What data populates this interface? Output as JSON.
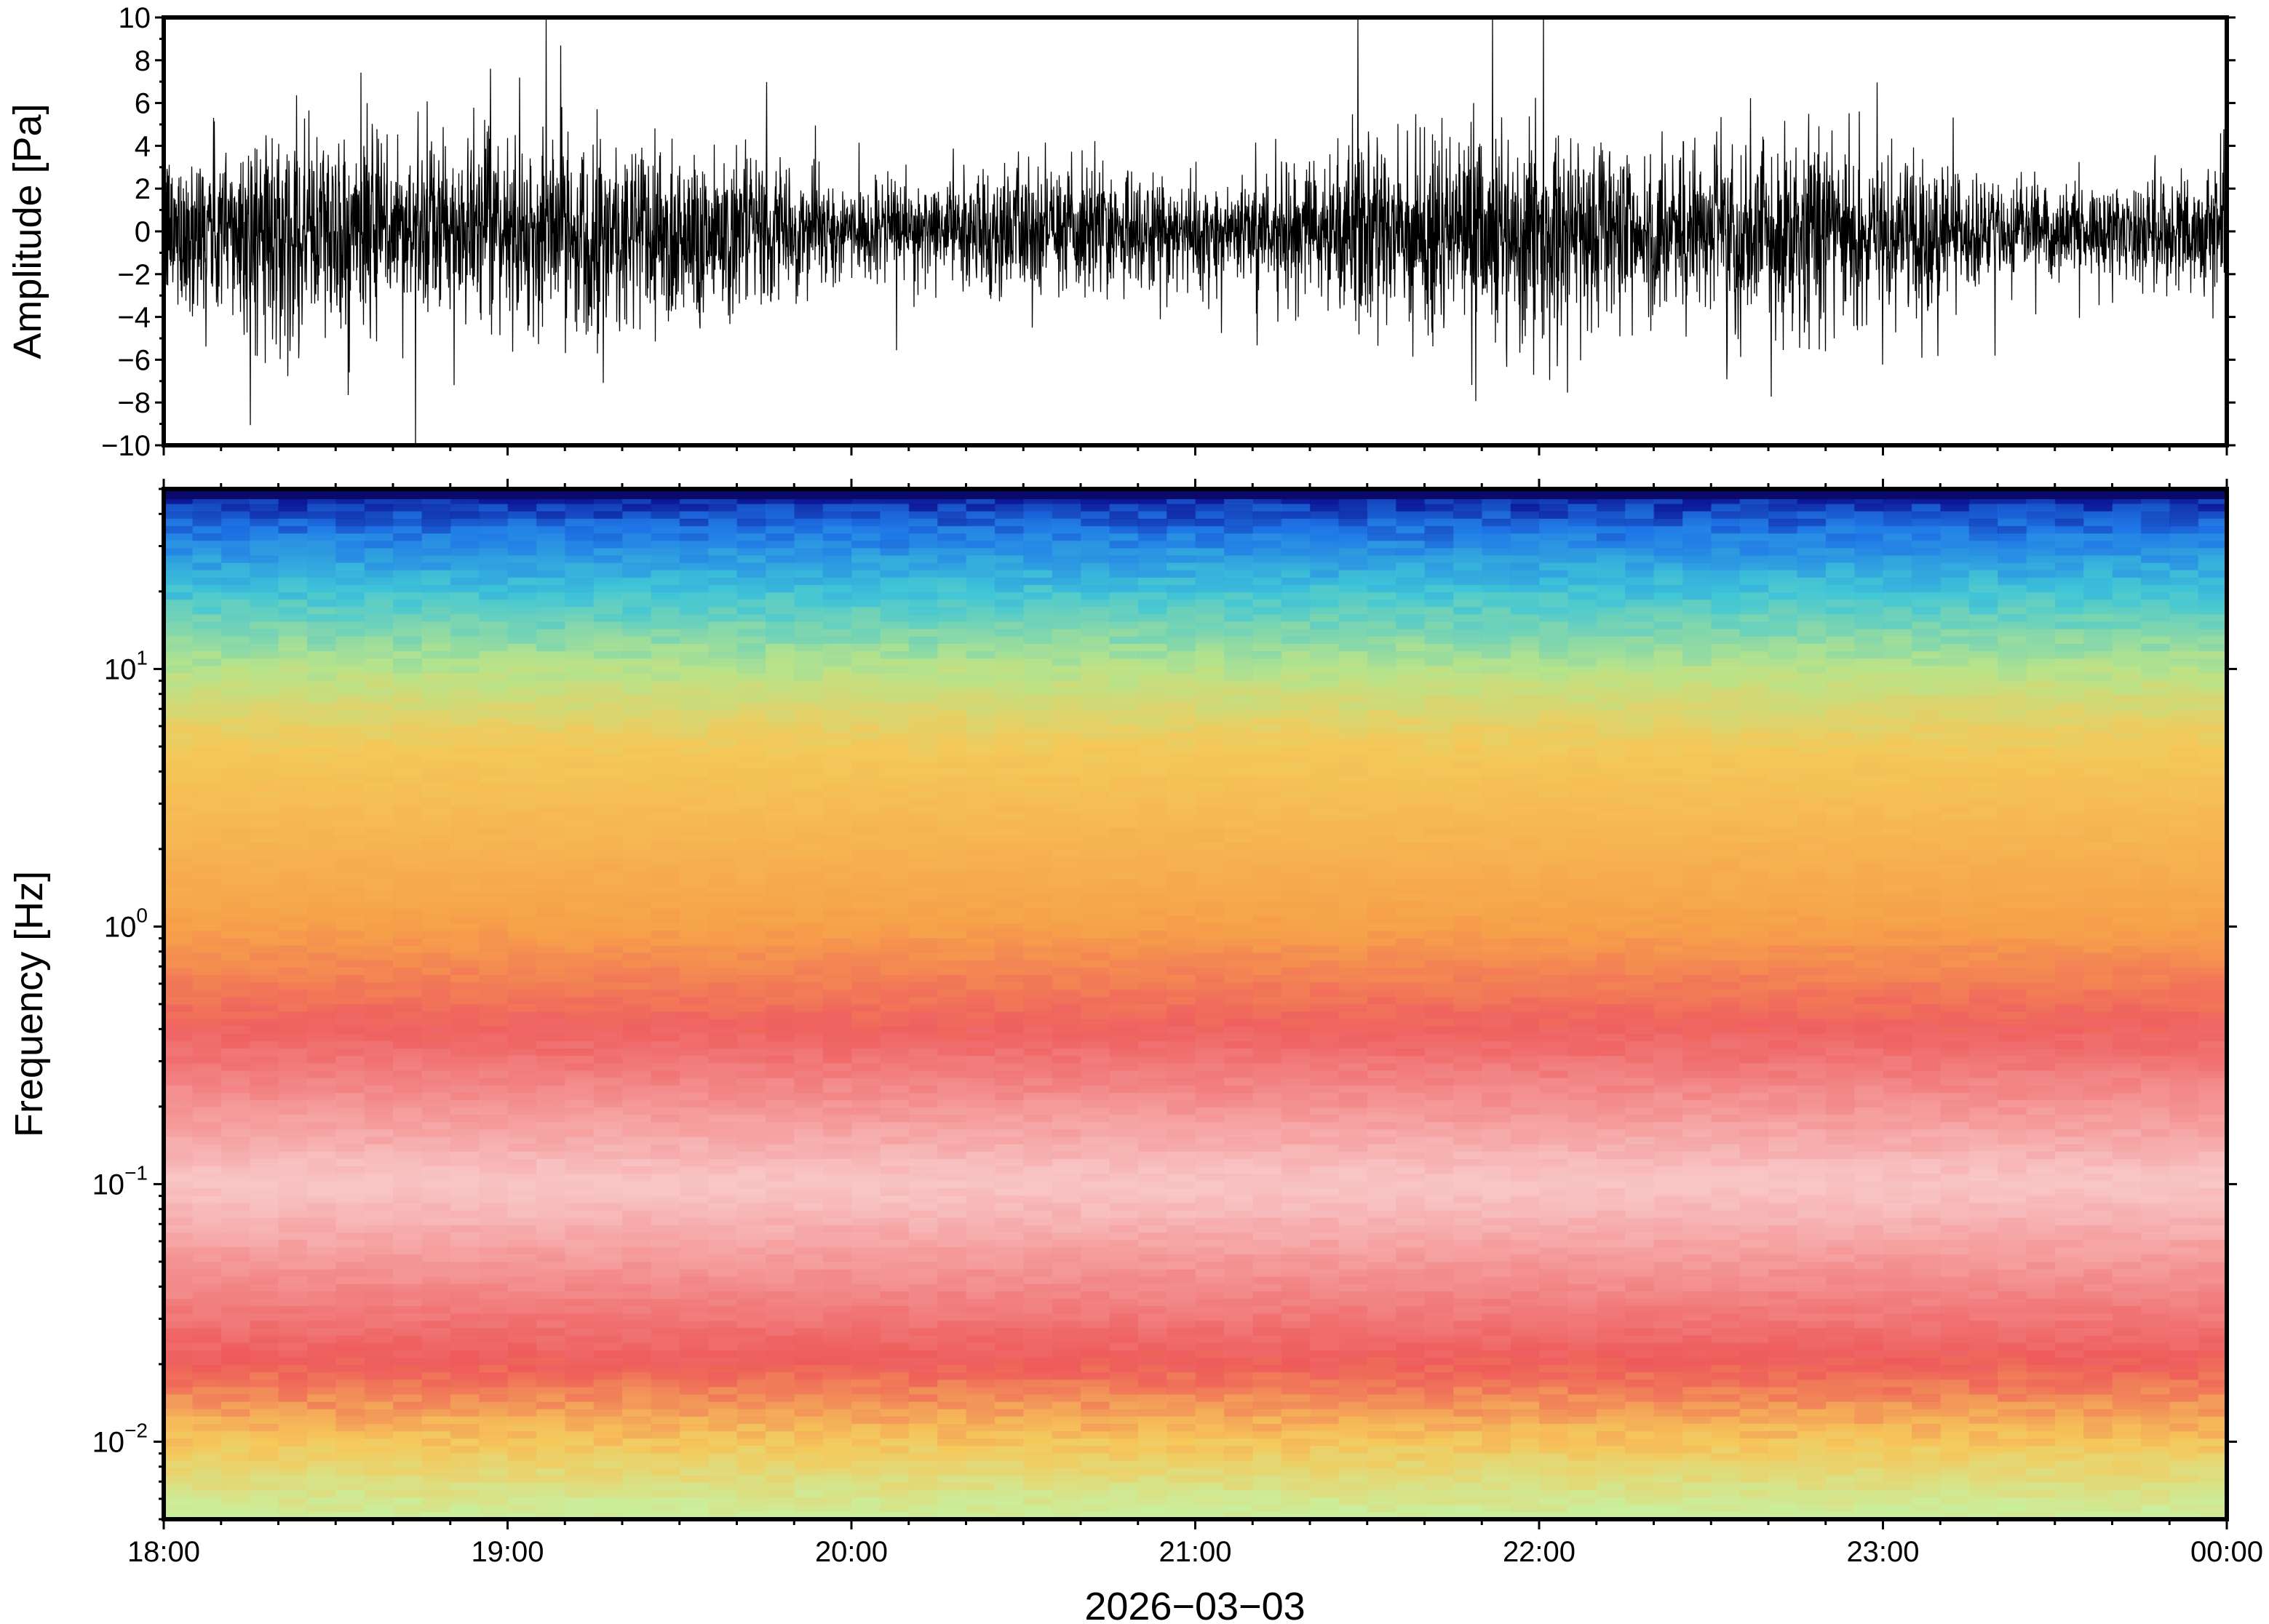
{
  "chart_data": [
    {
      "type": "line",
      "panel": "waveform",
      "ylabel": "Amplitude [Pa]",
      "ylim": [
        -10,
        10
      ],
      "yticks": [
        10,
        8,
        6,
        4,
        2,
        0,
        -2,
        -4,
        -6,
        -8,
        -10
      ],
      "ytick_labels": [
        "10",
        "8",
        "6",
        "4",
        "2",
        "0",
        "−2",
        "−4",
        "−6",
        "−8",
        "−10"
      ],
      "x_range": [
        "18:00",
        "00:00"
      ],
      "typical_envelope": 4,
      "peak_envelope": 10,
      "trace_color": "#000000"
    },
    {
      "type": "heatmap",
      "panel": "spectrogram",
      "ylabel": "Frequency [Hz]",
      "yscale": "log",
      "ylim": [
        0.005,
        50
      ],
      "yticks": [
        0.01,
        0.1,
        1,
        10
      ],
      "ytick_labels": [
        {
          "base": "10",
          "exp": "−2"
        },
        {
          "base": "10",
          "exp": "−1"
        },
        {
          "base": "10",
          "exp": "0"
        },
        {
          "base": "10",
          "exp": "1"
        }
      ],
      "xlabel": "2026−03−03",
      "xtick_labels": [
        "18:00",
        "19:00",
        "20:00",
        "21:00",
        "22:00",
        "23:00",
        "00:00"
      ],
      "colormap_stops": [
        {
          "freq": 0.005,
          "color": "#c8f0a0"
        },
        {
          "freq": 0.01,
          "color": "#f6c85a"
        },
        {
          "freq": 0.02,
          "color": "#ee5a5a"
        },
        {
          "freq": 0.1,
          "color": "#f9c8c8"
        },
        {
          "freq": 0.4,
          "color": "#ef6060"
        },
        {
          "freq": 1,
          "color": "#f6a24a"
        },
        {
          "freq": 5,
          "color": "#f4c95a"
        },
        {
          "freq": 10,
          "color": "#b9e48a"
        },
        {
          "freq": 20,
          "color": "#3fc6d8"
        },
        {
          "freq": 35,
          "color": "#1f76e8"
        },
        {
          "freq": 50,
          "color": "#0a0a8a"
        }
      ]
    }
  ]
}
